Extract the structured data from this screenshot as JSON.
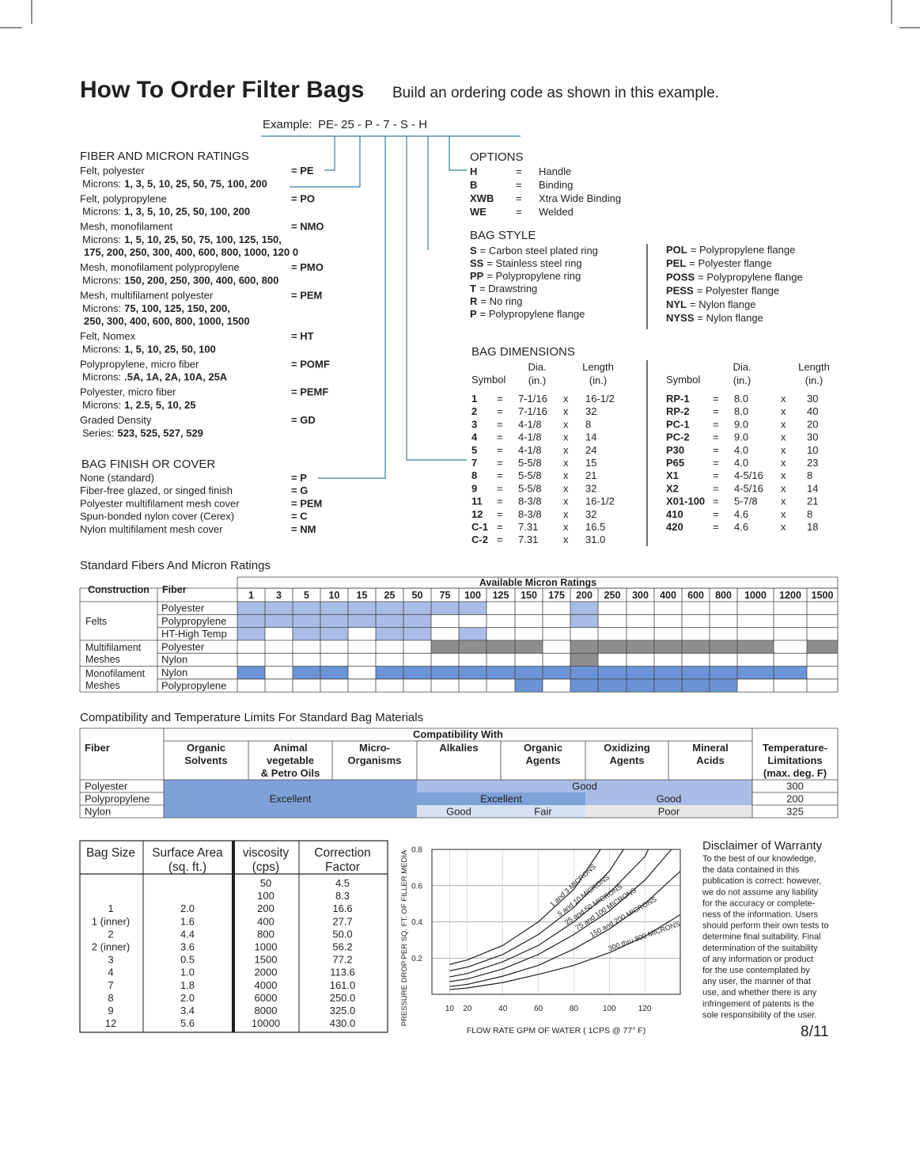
{
  "header": {
    "title": "How To Order Filter Bags",
    "subtitle": "Build an ordering code as shown in this example."
  },
  "example": {
    "label": "Example:",
    "code": "PE- 25 - P - 7 - S - H"
  },
  "fiber": {
    "heading": "FIBER AND MICRON RATINGS",
    "items": [
      {
        "name": "Felt, polyester",
        "code": "= PE",
        "detail": {
          "label": "Microns:",
          "lines": [
            "1, 3, 5, 10, 25, 50, 75, 100, 200"
          ]
        }
      },
      {
        "name": "Felt, polypropylene",
        "code": "= PO",
        "detail": {
          "label": "Microns:",
          "lines": [
            "1, 3, 5, 10, 25, 50, 100, 200"
          ]
        }
      },
      {
        "name": "Mesh, monofilament",
        "code": "= NMO",
        "detail": {
          "label": "Microns:",
          "lines": [
            "1, 5, 10, 25, 50, 75, 100, 125, 150,",
            "175, 200, 250, 300, 400, 600, 800, 1000, 120 0"
          ]
        }
      },
      {
        "name": "Mesh, monofilament polypropylene",
        "code": "= PMO",
        "detail": {
          "label": "Microns:",
          "lines": [
            "150, 200, 250, 300, 400, 600, 800"
          ]
        }
      },
      {
        "name": "Mesh, multifilament polyester",
        "code": "= PEM",
        "detail": {
          "label": "Microns:",
          "lines": [
            "75, 100, 125, 150, 200,",
            "250, 300, 400, 600, 800, 1000, 1500"
          ]
        }
      },
      {
        "name": "Felt, Nomex",
        "code": "= HT",
        "detail": {
          "label": "Microns:",
          "lines": [
            "1, 5, 10, 25, 50, 100"
          ]
        }
      },
      {
        "name": "Polypropylene, micro fiber",
        "code": "= POMF",
        "detail": {
          "label": "Microns:",
          "lines": [
            ".5A, 1A, 2A, 10A, 25A"
          ]
        }
      },
      {
        "name": "Polyester, micro fiber",
        "code": "= PEMF",
        "detail": {
          "label": "Microns:",
          "lines": [
            "1, 2.5, 5, 10, 25"
          ]
        }
      },
      {
        "name": "Graded Density",
        "code": "= GD",
        "detail": {
          "label": "Series:",
          "lines": [
            "523, 525, 527, 529"
          ]
        }
      }
    ]
  },
  "finish": {
    "heading": "BAG FINISH OR COVER",
    "items": [
      {
        "name": "None (standard)",
        "code": "= P"
      },
      {
        "name": "Fiber-free glazed, or singed finish",
        "code": "= G"
      },
      {
        "name": "Polyester multifilament mesh cover",
        "code": "= PEM"
      },
      {
        "name": "Spun-bonded nylon cover (Cerex)",
        "code": "= C"
      },
      {
        "name": "Nylon multifilament mesh cover",
        "code": "= NM"
      }
    ]
  },
  "options": {
    "heading": "OPTIONS",
    "rows": [
      [
        "H",
        "=",
        "Handle"
      ],
      [
        "B",
        "=",
        "Binding"
      ],
      [
        "XWB",
        "=",
        "Xtra Wide Binding"
      ],
      [
        "WE",
        "=",
        "Welded"
      ]
    ]
  },
  "bag_style": {
    "heading": "BAG STYLE",
    "left": [
      {
        "code": "S",
        "desc": "= Carbon steel plated ring"
      },
      {
        "code": "SS",
        "desc": "= Stainless steel ring"
      },
      {
        "code": "PP",
        "desc": "= Polypropylene ring"
      },
      {
        "code": "T",
        "desc": "= Drawstring"
      },
      {
        "code": "R",
        "desc": "= No ring"
      },
      {
        "code": "P",
        "desc": "= Polypropylene flange"
      }
    ],
    "right": [
      {
        "code": "POL",
        "desc": "= Polypropylene flange"
      },
      {
        "code": "PEL",
        "desc": "= Polyester flange"
      },
      {
        "code": "POSS",
        "desc": "= Polypropylene flange"
      },
      {
        "code": "PESS",
        "desc": "= Polyester flange"
      },
      {
        "code": "NYL",
        "desc": "= Nylon flange"
      },
      {
        "code": "NYSS",
        "desc": "= Nylon flange"
      }
    ]
  },
  "dimensions": {
    "heading": "BAG DIMENSIONS",
    "headers": [
      {
        "symbol": "Symbol",
        "dia": [
          "Dia.",
          "(in.)"
        ],
        "length": [
          "Length",
          "(in.)"
        ]
      },
      {
        "symbol": "Symbol",
        "dia": [
          "Dia.",
          "(in.)"
        ],
        "length": [
          "Length",
          "(in.)"
        ]
      }
    ],
    "left": [
      [
        "1",
        "=",
        "7-1/16",
        "x",
        "16-1/2"
      ],
      [
        "2",
        "=",
        "7-1/16",
        "x",
        "32"
      ],
      [
        "3",
        "=",
        "4-1/8",
        "x",
        "8"
      ],
      [
        "4",
        "=",
        "4-1/8",
        "x",
        "14"
      ],
      [
        "5",
        "=",
        "4-1/8",
        "x",
        "24"
      ],
      [
        "7",
        "=",
        "5-5/8",
        "x",
        "15"
      ],
      [
        "8",
        "=",
        "5-5/8",
        "x",
        "21"
      ],
      [
        "9",
        "=",
        "5-5/8",
        "x",
        "32"
      ],
      [
        "11",
        "=",
        "8-3/8",
        "x",
        "16-1/2"
      ],
      [
        "12",
        "=",
        "8-3/8",
        "x",
        "32"
      ],
      [
        "C-1",
        "=",
        "7.31",
        "x",
        "16.5"
      ],
      [
        "C-2",
        "=",
        "7.31",
        "x",
        "31.0"
      ]
    ],
    "right": [
      [
        "RP-1",
        "=",
        "8.0",
        "x",
        "30"
      ],
      [
        "RP-2",
        "=",
        "8.0",
        "x",
        "40"
      ],
      [
        "PC-1",
        "=",
        "9.0",
        "x",
        "20"
      ],
      [
        "PC-2",
        "=",
        "9.0",
        "x",
        "30"
      ],
      [
        "P30",
        "=",
        "4.0",
        "x",
        "10"
      ],
      [
        "P65",
        "=",
        "4.0",
        "x",
        "23"
      ],
      [
        "X1",
        "=",
        "4-5/16",
        "x",
        "8"
      ],
      [
        "X2",
        "=",
        "4-5/16",
        "x",
        "14"
      ],
      [
        "X01-100",
        "=",
        "5-7/8",
        "x",
        "21"
      ],
      [
        "410",
        "=",
        "4.6",
        "x",
        "8"
      ],
      [
        "420",
        "=",
        "4.6",
        "x",
        "18"
      ]
    ]
  },
  "micron_table": {
    "title": "Standard Fibers And Micron Ratings",
    "construction_header": "Construction",
    "fiber_header": "Fiber",
    "ratings_header": "Available Micron Ratings",
    "microns": [
      "1",
      "3",
      "5",
      "10",
      "15",
      "25",
      "50",
      "75",
      "100",
      "125",
      "150",
      "175",
      "200",
      "250",
      "300",
      "400",
      "600",
      "800",
      "1000",
      "1200",
      "1500"
    ],
    "colors": {
      "l": "#a9bce6",
      "g": "#8e8e8e",
      "b": "#6b93d6"
    },
    "groups": [
      {
        "name": [
          "Felts"
        ],
        "rows": [
          {
            "fiber": "Polyester",
            "cells": "lllllllll...l........"
          },
          {
            "fiber": "Polypropylene",
            "cells": "lllllll.....l........"
          },
          {
            "fiber": "HT-High Temp",
            "cells": "l.ll.ll.l............"
          }
        ]
      },
      {
        "name": [
          "Multifilament",
          "Meshes"
        ],
        "rows": [
          {
            "fiber": "Polyester",
            "cells": ".......gggg.ggggggg.g"
          },
          {
            "fiber": "Nylon",
            "cells": "............g........"
          }
        ]
      },
      {
        "name": [
          "Monofilament",
          "Meshes"
        ],
        "rows": [
          {
            "fiber": "Nylon",
            "cells": "b.bb.bbbbbbbbbbbbbbb."
          },
          {
            "fiber": "Polypropylene",
            "cells": "..........b.bbbbbb..."
          }
        ]
      }
    ]
  },
  "compat_table": {
    "title": "Compatibility and Temperature Limits For Standard Bag Materials",
    "fiber_header": "Fiber",
    "group_header": "Compatibility With",
    "columns": [
      [
        "Organic",
        "Solvents"
      ],
      [
        "Animal",
        "vegetable",
        "& Petro Oils"
      ],
      [
        "Micro-",
        "Organisms"
      ],
      [
        "Alkalies"
      ],
      [
        "Organic",
        "Agents"
      ],
      [
        "Oxidizing",
        "Agents"
      ],
      [
        "Mineral",
        "Acids"
      ]
    ],
    "temp_header": [
      "Temperature-",
      "Limitations",
      "(max. deg. F)"
    ],
    "fibers": [
      "Polyester",
      "Polypropylene",
      "Nylon"
    ],
    "temps": [
      "300",
      "200",
      "325"
    ],
    "cells": [
      {
        "text": "Excellent",
        "col": 0,
        "span": 3,
        "row": 0,
        "rowspan": 3,
        "color": "#7ea1d8"
      },
      {
        "text": "Good",
        "col": 3,
        "span": 4,
        "row": 0,
        "rowspan": 1,
        "color": "#a9bce6"
      },
      {
        "text": "Excellent",
        "col": 3,
        "span": 2,
        "row": 1,
        "rowspan": 1,
        "color": "#7ea1d8"
      },
      {
        "text": "Good",
        "col": 5,
        "span": 2,
        "row": 1,
        "rowspan": 1,
        "color": "#a9bce6"
      },
      {
        "text": "Good",
        "col": 3,
        "span": 1,
        "row": 2,
        "rowspan": 1,
        "color": "#d6e0f3"
      },
      {
        "text": "Fair",
        "col": 4,
        "span": 1,
        "row": 2,
        "rowspan": 1,
        "color": "#d6e0f3"
      },
      {
        "text": "Poor",
        "col": 5,
        "span": 2,
        "row": 2,
        "rowspan": 1,
        "color": "#e6e6e6"
      }
    ]
  },
  "bag_table": {
    "headers": [
      [
        "Bag Size"
      ],
      [
        "Surface Area",
        "(sq. ft.)"
      ],
      [
        "viscosity",
        "(cps)"
      ],
      [
        "Correction",
        "Factor"
      ]
    ],
    "rows": [
      [
        null,
        null,
        "50",
        "4.5"
      ],
      [
        null,
        null,
        "100",
        "8.3"
      ],
      [
        "1",
        "2.0",
        "200",
        "16.6"
      ],
      [
        "1 (inner)",
        "1.6",
        "400",
        "27.7"
      ],
      [
        "2",
        "4.4",
        "800",
        "50.0"
      ],
      [
        "2 (inner)",
        "3.6",
        "1000",
        "56.2"
      ],
      [
        "3",
        "0.5",
        "1500",
        "77.2"
      ],
      [
        "4",
        "1.0",
        "2000",
        "113.6"
      ],
      [
        "7",
        "1.8",
        "4000",
        "161.0"
      ],
      [
        "8",
        "2.0",
        "6000",
        "250.0"
      ],
      [
        "9",
        "3.4",
        "8000",
        "325.0"
      ],
      [
        "12",
        "5.6",
        "10000",
        "430.0"
      ]
    ]
  },
  "chart_data": {
    "type": "line",
    "x_label": "FLOW RATE GPM OF WATER ( 1CPS @ 77° F)",
    "y_label": "PRESSURE DROP PER SQ. FT. OF FILLER MEDIA",
    "xlim": [
      0,
      140
    ],
    "ylim": [
      0,
      0.8
    ],
    "xticks": [
      10,
      20,
      40,
      60,
      80,
      100,
      120
    ],
    "yticks": [
      0.2,
      0.4,
      0.6,
      0.8
    ],
    "grid": true,
    "color": "#231f20",
    "series": [
      {
        "name": "1 and 3 MICRONS",
        "x": [
          10,
          20,
          40,
          60,
          80,
          95
        ],
        "values": [
          0.165,
          0.19,
          0.27,
          0.4,
          0.58,
          0.8
        ]
      },
      {
        "name": "5 and 10 MICRONS",
        "x": [
          10,
          20,
          40,
          60,
          80,
          100,
          108
        ],
        "values": [
          0.13,
          0.15,
          0.22,
          0.33,
          0.48,
          0.68,
          0.8
        ]
      },
      {
        "name": "25 and 50 MICRONS",
        "x": [
          10,
          20,
          40,
          60,
          80,
          100,
          120,
          122
        ],
        "values": [
          0.096,
          0.115,
          0.18,
          0.27,
          0.4,
          0.56,
          0.76,
          0.8
        ]
      },
      {
        "name": "75 and 100 MICRONS",
        "x": [
          10,
          20,
          40,
          60,
          80,
          100,
          120,
          135
        ],
        "values": [
          0.07,
          0.085,
          0.14,
          0.22,
          0.33,
          0.46,
          0.63,
          0.8
        ]
      },
      {
        "name": "150 and 200 MICRONS",
        "x": [
          10,
          20,
          40,
          60,
          80,
          100,
          120,
          140
        ],
        "values": [
          0.043,
          0.055,
          0.1,
          0.16,
          0.25,
          0.36,
          0.5,
          0.68
        ]
      },
      {
        "name": "300 thru 800 MICRONS",
        "x": [
          10,
          20,
          40,
          60,
          80,
          100,
          120,
          140
        ],
        "values": [
          0.026,
          0.035,
          0.065,
          0.11,
          0.16,
          0.23,
          0.32,
          0.44
        ]
      }
    ]
  },
  "disclaimer": {
    "title": "Disclaimer of Warranty",
    "lines": [
      "To the best of our knowledge,",
      "the data contained in this",
      "publication is correct: however,",
      "we do not assume any liability",
      "for the accuracy or complete-",
      "ness of the information. Users",
      "should perform their own tests to",
      "determine final suitability. Final",
      "determination of the suitability",
      "of any information or product",
      "for the use contemplated by",
      "any user, the manner of that",
      "use, and whether there is any",
      "infringement of patents is the",
      "sole responsibility of the user."
    ]
  },
  "page_number": "8/11"
}
